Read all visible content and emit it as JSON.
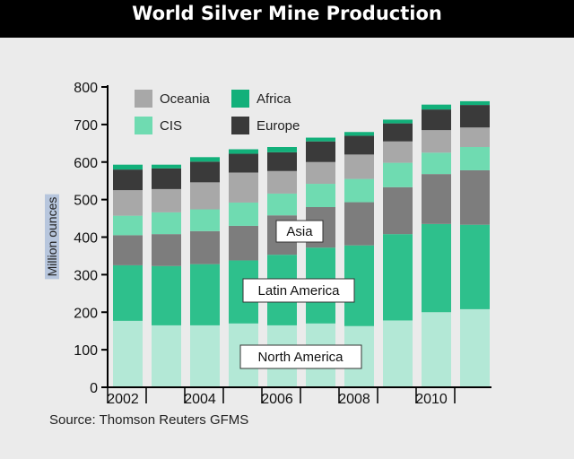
{
  "chart_data": {
    "type": "bar",
    "stacked": true,
    "title": "World Silver Mine Production",
    "xlabel": "",
    "ylabel": "Million ounces",
    "ylim": [
      0,
      800
    ],
    "yticks": [
      0,
      100,
      200,
      300,
      400,
      500,
      600,
      700,
      800
    ],
    "xtick_labels": [
      "2002",
      "2004",
      "2006",
      "2008",
      "2010"
    ],
    "categories": [
      "2002",
      "2003",
      "2004",
      "2005",
      "2006",
      "2007",
      "2008",
      "2009",
      "2010",
      "2011"
    ],
    "series": [
      {
        "name": "North America",
        "color": "#b3e8d6",
        "values": [
          177,
          165,
          165,
          170,
          165,
          170,
          163,
          178,
          200,
          208
        ]
      },
      {
        "name": "Latin America",
        "color": "#2ec08c",
        "values": [
          148,
          158,
          163,
          168,
          188,
          202,
          215,
          230,
          235,
          225
        ]
      },
      {
        "name": "Asia",
        "color": "#7d7d7d",
        "values": [
          80,
          85,
          88,
          92,
          105,
          108,
          115,
          125,
          133,
          145
        ]
      },
      {
        "name": "CIS",
        "color": "#6fdbb1",
        "values": [
          52,
          58,
          58,
          62,
          58,
          62,
          62,
          65,
          57,
          62
        ]
      },
      {
        "name": "Oceania",
        "color": "#a8a8a8",
        "values": [
          68,
          62,
          72,
          80,
          60,
          58,
          65,
          57,
          60,
          52
        ]
      },
      {
        "name": "Europe",
        "color": "#3a3a3a",
        "values": [
          55,
          55,
          55,
          50,
          50,
          55,
          50,
          48,
          55,
          60
        ]
      },
      {
        "name": "Africa",
        "color": "#12b07a",
        "values": [
          13,
          10,
          12,
          12,
          14,
          10,
          10,
          10,
          13,
          10
        ]
      }
    ],
    "legend": [
      {
        "name": "Oceania",
        "color": "#a8a8a8"
      },
      {
        "name": "Africa",
        "color": "#12b07a"
      },
      {
        "name": "CIS",
        "color": "#6fdbb1"
      },
      {
        "name": "Europe",
        "color": "#3a3a3a"
      }
    ],
    "legend_position": "top-left",
    "annotations": {
      "asia": "Asia",
      "latin_america": "Latin America",
      "north_america": "North America"
    },
    "source": "Source:  Thomson Reuters GFMS",
    "grid": false
  }
}
